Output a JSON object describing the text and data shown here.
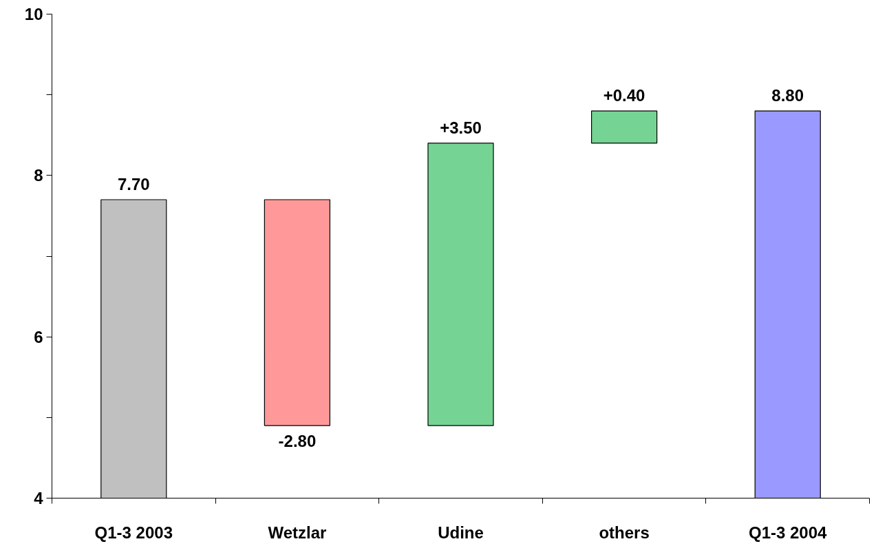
{
  "chart_data": {
    "type": "bar",
    "categories": [
      "Q1-3 2003",
      "Wetzlar",
      "Udine",
      "others",
      "Q1-3 2004"
    ],
    "values": [
      7.7,
      -2.8,
      3.5,
      0.4,
      8.8
    ],
    "base": [
      0,
      7.7,
      4.9,
      8.4,
      0
    ],
    "colors": [
      "#c0c0c0",
      "#ff9999",
      "#75d394",
      "#75d394",
      "#9999ff"
    ],
    "value_labels": [
      "7.70",
      "-2.80",
      "+3.50",
      "+0.40",
      "8.80"
    ],
    "ylim": [
      4,
      10
    ],
    "yticks": [
      4,
      {
        "value": 5,
        "label": null
      },
      6,
      {
        "value": 7,
        "label": null
      },
      8,
      {
        "value": 9,
        "label": null
      },
      10
    ],
    "grid": false
  }
}
